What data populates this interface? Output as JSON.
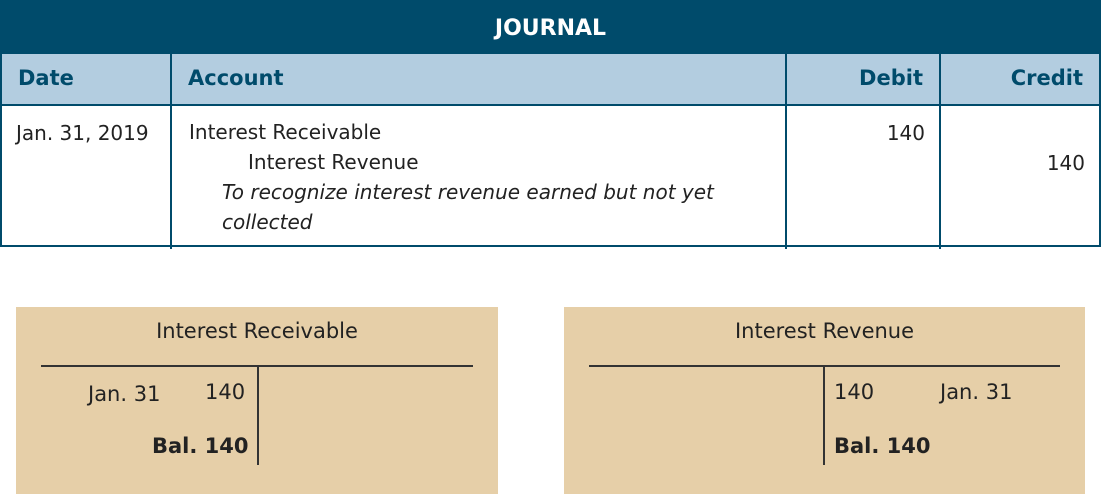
{
  "journal": {
    "title": "JOURNAL",
    "headers": {
      "date": "Date",
      "account": "Account",
      "debit": "Debit",
      "credit": "Credit"
    },
    "entry": {
      "date": "Jan. 31, 2019",
      "debit_account": "Interest Receivable",
      "credit_account": "Interest Revenue",
      "memo_italic": "To recognize",
      "memo_rest": " interest revenue earned but not yet collected",
      "debit": "140",
      "credit": "140"
    }
  },
  "t_accounts": [
    {
      "title": "Interest Receivable",
      "debit_date": "Jan. 31",
      "debit_amount": "140",
      "balance": "Bal. 140"
    },
    {
      "title": "Interest Revenue",
      "credit_date": "Jan. 31",
      "credit_amount": "140",
      "balance": "Bal. 140"
    }
  ],
  "colors": {
    "header_dark": "#004b6b",
    "header_light": "#b3cde0",
    "t_account_bg": "#e6cfa8"
  }
}
